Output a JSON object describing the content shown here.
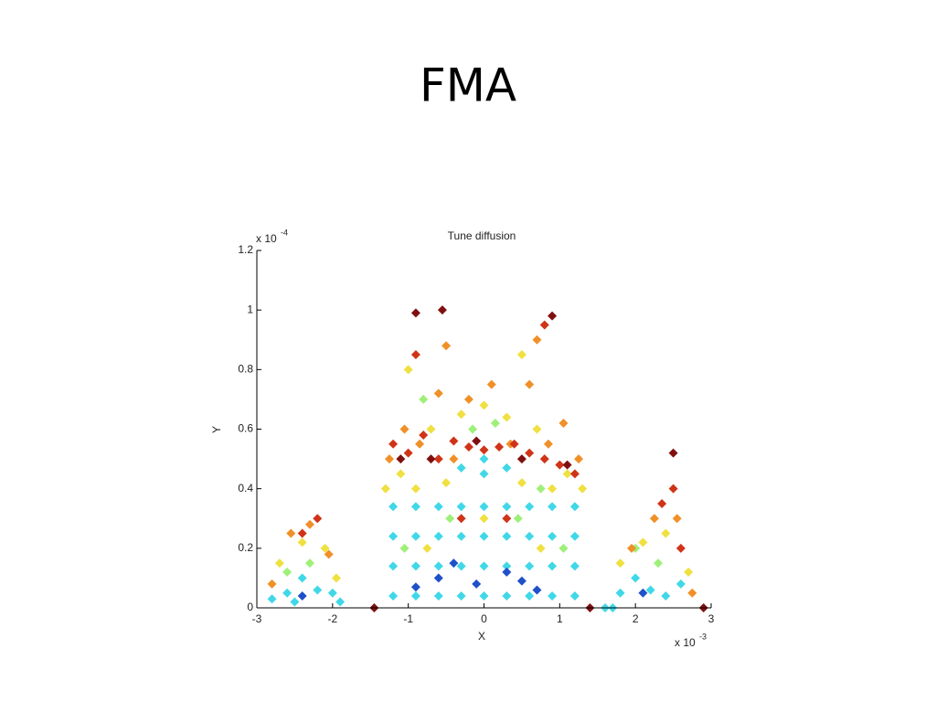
{
  "slide_title": "FMA",
  "chart_data": {
    "type": "scatter",
    "title": "Tune diffusion",
    "x_label": "X",
    "y_label": "Y",
    "x_scale_label": {
      "base": "x 10",
      "exponent": "-3"
    },
    "y_scale_label": {
      "base": "x 10",
      "exponent": "-4"
    },
    "xlim": [
      -3,
      3
    ],
    "xticks": [
      -3,
      -2,
      -1,
      0,
      1,
      2,
      3
    ],
    "ylim": [
      0,
      1.2
    ],
    "yticks": [
      0,
      0.2,
      0.4,
      0.6,
      0.8,
      1,
      1.2
    ],
    "series": [
      {
        "color": "#40d8e8",
        "x": [
          -1.2,
          -0.9,
          -0.6,
          -0.3,
          0,
          0.3,
          0.6,
          0.9,
          1.2,
          -1.2,
          -0.9,
          -0.6,
          -0.3,
          0,
          0.3,
          0.6,
          0.9,
          1.2,
          -1.2,
          -0.9,
          -0.6,
          -0.3,
          0,
          0.3,
          0.6,
          0.9,
          1.2,
          -1.2,
          -0.9,
          -0.6,
          -0.3,
          0,
          0.3,
          0.6,
          0.9,
          1.2,
          -2.8,
          -2.6,
          -2.4,
          -2.2,
          -2.0,
          -2.5,
          -1.9,
          1.8,
          2.0,
          2.2,
          2.4,
          2.6,
          1.6,
          1.7,
          0,
          0,
          -0.3,
          0.3
        ],
        "y": [
          0.04,
          0.04,
          0.04,
          0.04,
          0.04,
          0.04,
          0.04,
          0.04,
          0.04,
          0.14,
          0.14,
          0.14,
          0.14,
          0.14,
          0.14,
          0.14,
          0.14,
          0.14,
          0.24,
          0.24,
          0.24,
          0.24,
          0.24,
          0.24,
          0.24,
          0.24,
          0.24,
          0.34,
          0.34,
          0.34,
          0.34,
          0.34,
          0.34,
          0.34,
          0.34,
          0.34,
          0.03,
          0.05,
          0.1,
          0.06,
          0.05,
          0.02,
          0.02,
          0.05,
          0.1,
          0.06,
          0.04,
          0.08,
          0.0,
          0.0,
          0.5,
          0.45,
          0.47,
          0.47
        ]
      },
      {
        "color": "#2050c8",
        "x": [
          -0.9,
          -0.6,
          -0.1,
          0.3,
          0.7,
          -0.4,
          0.5,
          -2.4,
          2.1
        ],
        "y": [
          0.07,
          0.1,
          0.08,
          0.12,
          0.06,
          0.15,
          0.09,
          0.04,
          0.05
        ]
      },
      {
        "color": "#9ef078",
        "x": [
          -1.05,
          -0.45,
          0.45,
          1.05,
          -0.15,
          0.15,
          -2.3,
          2.3,
          -0.8,
          0.75,
          2.0,
          -2.6
        ],
        "y": [
          0.2,
          0.3,
          0.3,
          0.2,
          0.6,
          0.62,
          0.15,
          0.15,
          0.7,
          0.4,
          0.2,
          0.12
        ]
      },
      {
        "color": "#f0e040",
        "x": [
          -1.3,
          -1.1,
          -0.9,
          -0.7,
          -0.5,
          -0.3,
          0,
          0.3,
          0.5,
          0.7,
          0.9,
          1.1,
          1.3,
          -0.75,
          0.75,
          0,
          -2.7,
          -2.4,
          -2.1,
          -1.95,
          1.8,
          2.1,
          2.4,
          2.7,
          -1.0,
          0.5
        ],
        "y": [
          0.4,
          0.45,
          0.4,
          0.6,
          0.42,
          0.65,
          0.68,
          0.64,
          0.42,
          0.6,
          0.4,
          0.45,
          0.4,
          0.2,
          0.2,
          0.3,
          0.15,
          0.22,
          0.2,
          0.1,
          0.15,
          0.22,
          0.25,
          0.12,
          0.8,
          0.85
        ]
      },
      {
        "color": "#f09028",
        "x": [
          -1.25,
          -1.05,
          -0.85,
          -0.6,
          -0.4,
          -0.2,
          0.1,
          0.35,
          0.6,
          0.85,
          1.05,
          1.25,
          -2.55,
          -2.3,
          -2.05,
          -2.8,
          1.95,
          2.25,
          2.55,
          2.75,
          -0.5,
          0.7
        ],
        "y": [
          0.5,
          0.6,
          0.55,
          0.72,
          0.5,
          0.7,
          0.75,
          0.55,
          0.75,
          0.55,
          0.62,
          0.5,
          0.25,
          0.28,
          0.18,
          0.08,
          0.2,
          0.3,
          0.3,
          0.05,
          0.88,
          0.9
        ]
      },
      {
        "color": "#d03418",
        "x": [
          -1.2,
          -1.0,
          -0.8,
          -0.6,
          -0.4,
          -0.2,
          0,
          0.2,
          0.4,
          0.6,
          0.8,
          1.0,
          1.2,
          -2.2,
          -2.4,
          2.5,
          2.35,
          2.6,
          0.3,
          -0.3,
          -0.9,
          0.8
        ],
        "y": [
          0.55,
          0.52,
          0.58,
          0.5,
          0.56,
          0.54,
          0.53,
          0.54,
          0.55,
          0.52,
          0.5,
          0.48,
          0.45,
          0.3,
          0.25,
          0.4,
          0.35,
          0.2,
          0.3,
          0.3,
          0.85,
          0.95
        ]
      },
      {
        "color": "#801010",
        "x": [
          -1.1,
          -0.7,
          -0.1,
          0.5,
          1.1,
          -0.55,
          -0.9,
          0.9,
          2.5,
          -1.45,
          1.4,
          2.9
        ],
        "y": [
          0.5,
          0.5,
          0.56,
          0.5,
          0.48,
          1.0,
          0.99,
          0.98,
          0.52,
          0.0,
          0.0,
          0.0
        ]
      }
    ]
  }
}
